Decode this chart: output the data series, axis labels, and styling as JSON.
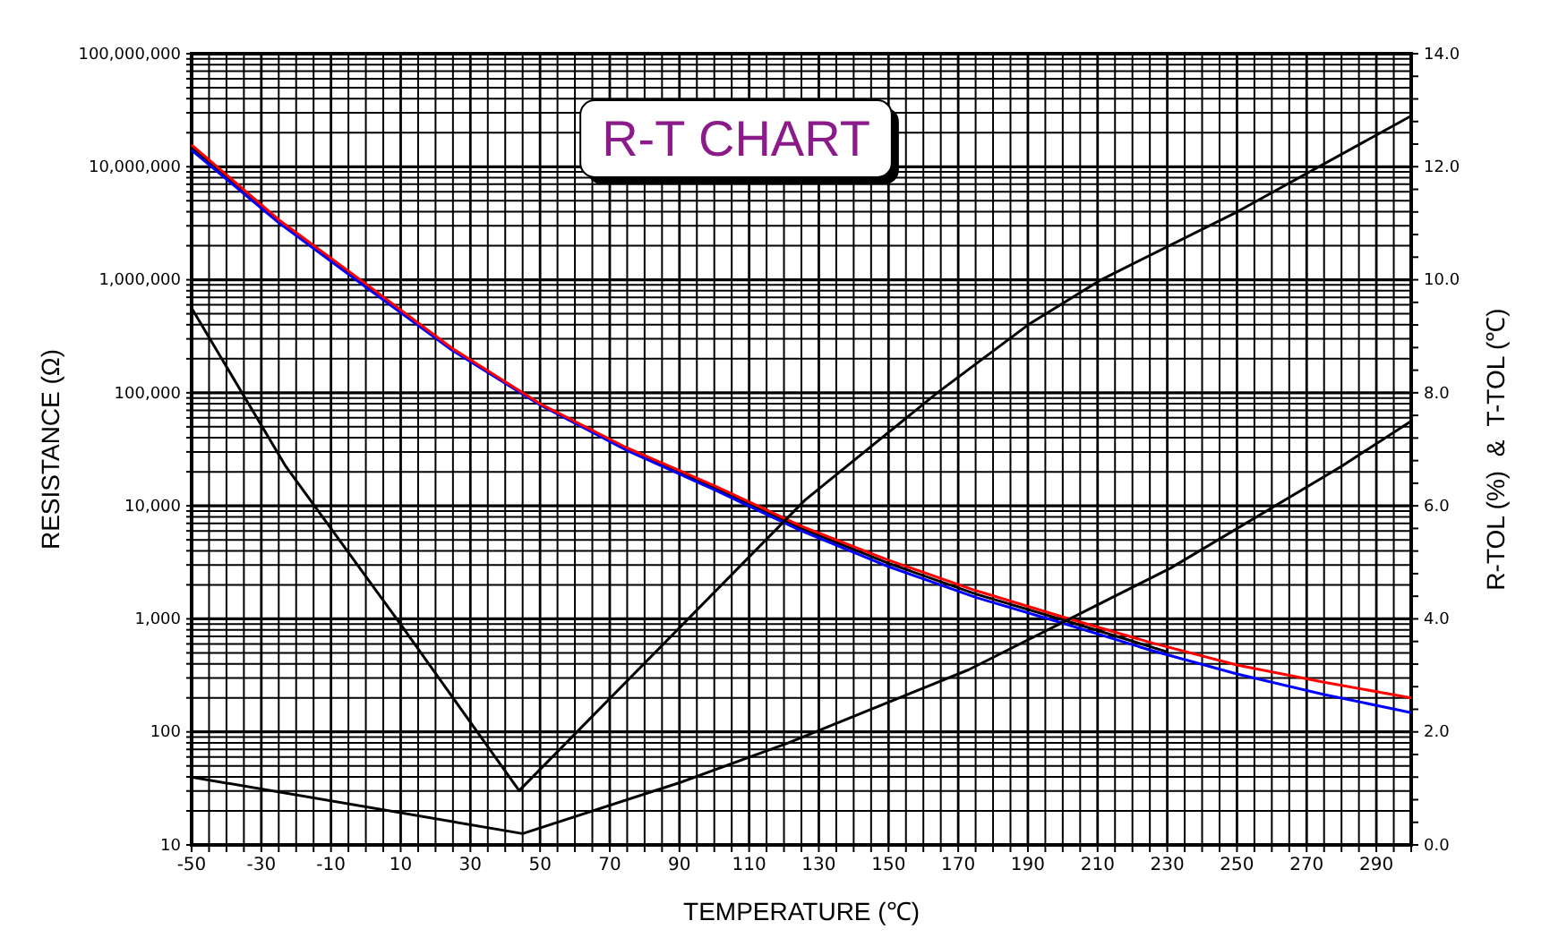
{
  "chart_data": {
    "type": "line",
    "title": "R-T CHART",
    "xlabel": "TEMPERATURE (℃)",
    "ylabel": "RESISTANCE (Ω)",
    "y2label": "R-TOL (%)  &  T-TOL (℃)",
    "log": "y",
    "grid": true,
    "marker": "none",
    "line_style": "solid",
    "xlim": [
      -50,
      300
    ],
    "xticks": [
      -50,
      {
        "value": -45,
        "label": null
      },
      {
        "value": -40,
        "label": null
      },
      {
        "value": -35,
        "label": null
      },
      -30,
      {
        "value": -25,
        "label": null
      },
      {
        "value": -20,
        "label": null
      },
      {
        "value": -15,
        "label": null
      },
      -10,
      {
        "value": -5,
        "label": null
      },
      {
        "value": 0,
        "label": null
      },
      {
        "value": 5,
        "label": null
      },
      10,
      {
        "value": 15,
        "label": null
      },
      {
        "value": 20,
        "label": null
      },
      {
        "value": 25,
        "label": null
      },
      30,
      {
        "value": 35,
        "label": null
      },
      {
        "value": 40,
        "label": null
      },
      {
        "value": 45,
        "label": null
      },
      50,
      {
        "value": 55,
        "label": null
      },
      {
        "value": 60,
        "label": null
      },
      {
        "value": 65,
        "label": null
      },
      70,
      {
        "value": 75,
        "label": null
      },
      {
        "value": 80,
        "label": null
      },
      {
        "value": 85,
        "label": null
      },
      90,
      {
        "value": 95,
        "label": null
      },
      {
        "value": 100,
        "label": null
      },
      {
        "value": 105,
        "label": null
      },
      110,
      {
        "value": 115,
        "label": null
      },
      {
        "value": 120,
        "label": null
      },
      {
        "value": 125,
        "label": null
      },
      130,
      {
        "value": 135,
        "label": null
      },
      {
        "value": 140,
        "label": null
      },
      {
        "value": 145,
        "label": null
      },
      150,
      {
        "value": 155,
        "label": null
      },
      {
        "value": 160,
        "label": null
      },
      {
        "value": 165,
        "label": null
      },
      170,
      {
        "value": 175,
        "label": null
      },
      {
        "value": 180,
        "label": null
      },
      {
        "value": 185,
        "label": null
      },
      190,
      {
        "value": 195,
        "label": null
      },
      {
        "value": 200,
        "label": null
      },
      {
        "value": 205,
        "label": null
      },
      210,
      {
        "value": 215,
        "label": null
      },
      {
        "value": 220,
        "label": null
      },
      {
        "value": 225,
        "label": null
      },
      230,
      {
        "value": 235,
        "label": null
      },
      {
        "value": 240,
        "label": null
      },
      {
        "value": 245,
        "label": null
      },
      250,
      {
        "value": 255,
        "label": null
      },
      {
        "value": 260,
        "label": null
      },
      {
        "value": 265,
        "label": null
      },
      270,
      {
        "value": 275,
        "label": null
      },
      {
        "value": 280,
        "label": null
      },
      {
        "value": 285,
        "label": null
      },
      290,
      {
        "value": 295,
        "label": null
      },
      {
        "value": 300,
        "label": null
      }
    ],
    "ylim": [
      10,
      100000000
    ],
    "yticks": [
      10,
      {
        "value": 20,
        "label": null
      },
      {
        "value": 30,
        "label": null
      },
      {
        "value": 40,
        "label": null
      },
      {
        "value": 50,
        "label": null
      },
      {
        "value": 60,
        "label": null
      },
      {
        "value": 70,
        "label": null
      },
      {
        "value": 80,
        "label": null
      },
      {
        "value": 90,
        "label": null
      },
      100,
      {
        "value": 200,
        "label": null
      },
      {
        "value": 300,
        "label": null
      },
      {
        "value": 400,
        "label": null
      },
      {
        "value": 500,
        "label": null
      },
      {
        "value": 600,
        "label": null
      },
      {
        "value": 700,
        "label": null
      },
      {
        "value": 800,
        "label": null
      },
      {
        "value": 900,
        "label": null
      },
      {
        "value": 1000,
        "label": "1,000"
      },
      {
        "value": 2000,
        "label": null
      },
      {
        "value": 3000,
        "label": null
      },
      {
        "value": 4000,
        "label": null
      },
      {
        "value": 5000,
        "label": null
      },
      {
        "value": 6000,
        "label": null
      },
      {
        "value": 7000,
        "label": null
      },
      {
        "value": 8000,
        "label": null
      },
      {
        "value": 9000,
        "label": null
      },
      {
        "value": 10000,
        "label": "10,000"
      },
      {
        "value": 20000,
        "label": null
      },
      {
        "value": 30000,
        "label": null
      },
      {
        "value": 40000,
        "label": null
      },
      {
        "value": 50000,
        "label": null
      },
      {
        "value": 60000,
        "label": null
      },
      {
        "value": 70000,
        "label": null
      },
      {
        "value": 80000,
        "label": null
      },
      {
        "value": 90000,
        "label": null
      },
      {
        "value": 100000,
        "label": "100,000"
      },
      {
        "value": 200000,
        "label": null
      },
      {
        "value": 300000,
        "label": null
      },
      {
        "value": 400000,
        "label": null
      },
      {
        "value": 500000,
        "label": null
      },
      {
        "value": 600000,
        "label": null
      },
      {
        "value": 700000,
        "label": null
      },
      {
        "value": 800000,
        "label": null
      },
      {
        "value": 900000,
        "label": null
      },
      {
        "value": 1000000,
        "label": "1,000,000"
      },
      {
        "value": 2000000,
        "label": null
      },
      {
        "value": 3000000,
        "label": null
      },
      {
        "value": 4000000,
        "label": null
      },
      {
        "value": 5000000,
        "label": null
      },
      {
        "value": 6000000,
        "label": null
      },
      {
        "value": 7000000,
        "label": null
      },
      {
        "value": 8000000,
        "label": null
      },
      {
        "value": 9000000,
        "label": null
      },
      {
        "value": 10000000,
        "label": "10,000,000"
      },
      {
        "value": 20000000,
        "label": null
      },
      {
        "value": 30000000,
        "label": null
      },
      {
        "value": 40000000,
        "label": null
      },
      {
        "value": 50000000,
        "label": null
      },
      {
        "value": 60000000,
        "label": null
      },
      {
        "value": 70000000,
        "label": null
      },
      {
        "value": 80000000,
        "label": null
      },
      {
        "value": 90000000,
        "label": null
      },
      {
        "value": 100000000,
        "label": "100,000,000"
      }
    ],
    "y2lim": [
      0,
      14
    ],
    "y2ticks": [
      {
        "value": 0,
        "label": "0.0"
      },
      {
        "value": 0.4,
        "label": null
      },
      {
        "value": 0.8,
        "label": null
      },
      {
        "value": 1.2,
        "label": null
      },
      {
        "value": 1.6,
        "label": null
      },
      {
        "value": 2,
        "label": "2.0"
      },
      {
        "value": 2.4,
        "label": null
      },
      {
        "value": 2.8,
        "label": null
      },
      {
        "value": 3.2,
        "label": null
      },
      {
        "value": 3.6,
        "label": null
      },
      {
        "value": 4,
        "label": "4.0"
      },
      {
        "value": 4.4,
        "label": null
      },
      {
        "value": 4.8,
        "label": null
      },
      {
        "value": 5.2,
        "label": null
      },
      {
        "value": 5.6,
        "label": null
      },
      {
        "value": 6,
        "label": "6.0"
      },
      {
        "value": 6.4,
        "label": null
      },
      {
        "value": 6.8,
        "label": null
      },
      {
        "value": 7.2,
        "label": null
      },
      {
        "value": 7.6,
        "label": null
      },
      {
        "value": 8,
        "label": "8.0"
      },
      {
        "value": 8.4,
        "label": null
      },
      {
        "value": 8.8,
        "label": null
      },
      {
        "value": 9.2,
        "label": null
      },
      {
        "value": 9.6,
        "label": null
      },
      {
        "value": 10,
        "label": "10.0"
      },
      {
        "value": 10.4,
        "label": null
      },
      {
        "value": 10.8,
        "label": null
      },
      {
        "value": 11.2,
        "label": null
      },
      {
        "value": 11.6,
        "label": null
      },
      {
        "value": 12,
        "label": "12.0"
      },
      {
        "value": 12.4,
        "label": null
      },
      {
        "value": 12.8,
        "label": null
      },
      {
        "value": 13.2,
        "label": null
      },
      {
        "value": 13.6,
        "label": null
      },
      {
        "value": 14,
        "label": "14.0"
      }
    ],
    "series": [
      {
        "color": "#000000",
        "x": [
          -50,
          -25,
          0,
          25,
          50,
          75,
          100,
          125,
          150,
          175,
          200,
          230
        ],
        "values": [
          14800000,
          3300000,
          890000,
          240000,
          79000,
          31600,
          14500,
          6300,
          3100,
          1660,
          980,
          510
        ]
      },
      {
        "color": "#0000ff",
        "x": [
          -50,
          -25,
          0,
          25,
          50,
          75,
          100,
          125,
          150,
          175,
          200,
          225,
          250,
          275,
          300
        ],
        "values": [
          14000000,
          3200000,
          860000,
          235000,
          78000,
          30800,
          13900,
          6000,
          2900,
          1550,
          915,
          530,
          325,
          214,
          148
        ]
      },
      {
        "color": "#ff0000",
        "x": [
          -50,
          -25,
          0,
          25,
          50,
          75,
          100,
          125,
          150,
          175,
          200,
          225,
          250,
          275,
          300
        ],
        "values": [
          15600000,
          3400000,
          920000,
          245000,
          80000,
          32500,
          15100,
          6600,
          3300,
          1780,
          1040,
          620,
          390,
          275,
          200
        ]
      },
      {
        "color": "#000000",
        "axis": "y2",
        "x": [
          -50,
          -23,
          10,
          44,
          126,
          132,
          164,
          190,
          211,
          250,
          300
        ],
        "values": [
          9.5,
          6.7,
          3.9,
          0.96,
          6.1,
          6.4,
          8.0,
          9.2,
          10.0,
          11.2,
          12.9
        ]
      },
      {
        "color": "#000000",
        "axis": "y2",
        "x": [
          -50,
          45,
          90,
          121,
          173,
          231,
          280,
          300
        ],
        "values": [
          1.2,
          0.2,
          1.1,
          1.8,
          3.1,
          4.9,
          6.7,
          7.5
        ]
      }
    ]
  }
}
